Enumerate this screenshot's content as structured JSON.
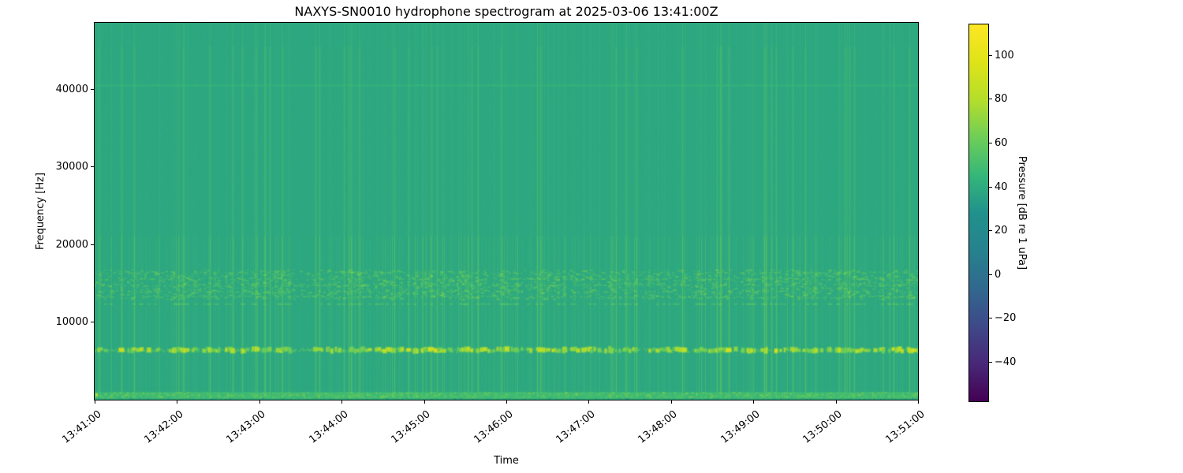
{
  "chart_data": {
    "type": "heatmap",
    "subtype": "spectrogram",
    "title": "NAXYS-SN0010 hydrophone spectrogram at 2025-03-06 13:41:00Z",
    "xlabel": "Time",
    "ylabel": "Frequency [Hz]",
    "x_tick_labels": [
      "13:41:00",
      "13:42:00",
      "13:43:00",
      "13:44:00",
      "13:45:00",
      "13:46:00",
      "13:47:00",
      "13:48:00",
      "13:49:00",
      "13:50:00",
      "13:51:00"
    ],
    "y_ticks": [
      {
        "label": "10000",
        "value": 10000
      },
      {
        "label": "20000",
        "value": 20000
      },
      {
        "label": "30000",
        "value": 30000
      },
      {
        "label": "40000",
        "value": 40000
      }
    ],
    "xlim": [
      "13:41:00",
      "13:51:00"
    ],
    "ylim": [
      0,
      48500
    ],
    "grid": false,
    "colorbar": {
      "label": "Pressure [dB re 1 uPa]",
      "ticks": [
        {
          "label": "100",
          "value": 100
        },
        {
          "label": "80",
          "value": 80
        },
        {
          "label": "60",
          "value": 60
        },
        {
          "label": "40",
          "value": 40
        },
        {
          "label": "20",
          "value": 20
        },
        {
          "label": "0",
          "value": 0
        },
        {
          "label": "−20",
          "value": -20
        },
        {
          "label": "−40",
          "value": -40
        }
      ],
      "vmin": -58,
      "vmax": 114,
      "colormap": "viridis",
      "colormap_stops": [
        "#440154",
        "#482878",
        "#3e4989",
        "#31688e",
        "#26828e",
        "#21918c",
        "#35b779",
        "#6ece58",
        "#b5de2b",
        "#dfe318",
        "#fde725"
      ]
    },
    "background_level_db": 38,
    "features": {
      "tonal_band": {
        "freq_hz": 6400,
        "bandwidth_hz": 700,
        "peak_level_db": 103,
        "description": "bright dashed tonal band"
      },
      "speckle_band": {
        "freq_low_hz": 13000,
        "freq_high_hz": 16800,
        "peak_level_db": 72,
        "description": "dense mottled band"
      },
      "narrow_band": {
        "freq_hz": 12300,
        "bandwidth_hz": 300,
        "peak_level_db": 62,
        "description": "thin dashed line"
      },
      "faint_line": {
        "freq_hz": 40500,
        "bandwidth_hz": 400,
        "peak_level_db": 46,
        "description": "very faint horizontal line"
      },
      "low_band": {
        "freq_low_hz": 0,
        "freq_high_hz": 1000,
        "peak_level_db": 72,
        "description": "brighter low-frequency strip"
      },
      "striations": {
        "description": "vertical broadband ping striations across all frequencies, stronger below 21 kHz"
      }
    },
    "palette": {
      "base": "#2ba482",
      "striation": "#55c16b",
      "band_bright": "#d8e22b"
    }
  }
}
